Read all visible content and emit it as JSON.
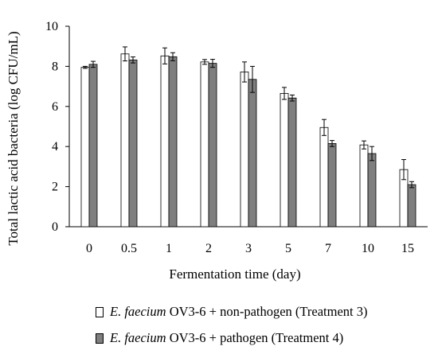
{
  "chart_data": {
    "type": "bar",
    "title": "",
    "xlabel": "Fermentation time (day)",
    "ylabel": "Total lactic acid bacteria (log CFU/mL)",
    "ylim": [
      0,
      10
    ],
    "yticks": [
      "0",
      "2",
      "4",
      "6",
      "8",
      "10"
    ],
    "categories": [
      "0",
      "0.5",
      "1",
      "2",
      "3",
      "5",
      "7",
      "10",
      "15"
    ],
    "series": [
      {
        "name": "E. faecium OV3-6 + non-pathogen (Treatment 3)",
        "color": "#ffffff",
        "values": [
          7.95,
          8.62,
          8.52,
          8.22,
          7.72,
          6.65,
          4.95,
          4.08,
          2.85
        ],
        "errors": [
          0.05,
          0.35,
          0.4,
          0.12,
          0.5,
          0.3,
          0.4,
          0.2,
          0.5
        ]
      },
      {
        "name": "E. faecium OV3-6 + pathogen (Treatment 4)",
        "color": "#7f7f7f",
        "values": [
          8.1,
          8.32,
          8.48,
          8.15,
          7.35,
          6.42,
          4.15,
          3.65,
          2.1
        ],
        "errors": [
          0.15,
          0.15,
          0.2,
          0.2,
          0.65,
          0.15,
          0.15,
          0.35,
          0.15
        ]
      }
    ],
    "grid": false,
    "legend_position": "bottom"
  },
  "legend": {
    "items": [
      {
        "italic": "E. faecium",
        "rest": " OV3-6 + non-pathogen (Treatment 3)",
        "color": "#ffffff"
      },
      {
        "italic": "E. faecium",
        "rest": " OV3-6 + pathogen (Treatment 4)",
        "color": "#7f7f7f"
      }
    ]
  }
}
